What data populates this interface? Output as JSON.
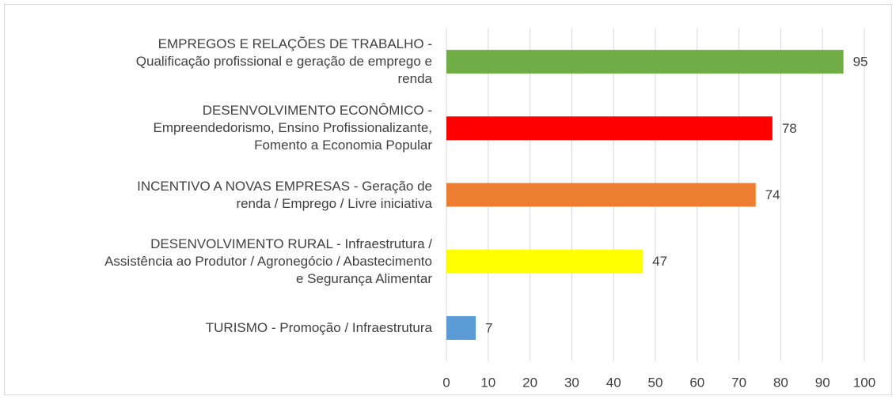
{
  "chart_data": {
    "type": "bar",
    "orientation": "horizontal",
    "categories": [
      "EMPREGOS E RELAÇÕES DE TRABALHO -\nQualificação profissional e geração de emprego e\nrenda",
      "DESENVOLVIMENTO ECONÔMICO -\nEmpreendedorismo, Ensino Profissionalizante,\nFomento a Economia Popular",
      "INCENTIVO A NOVAS EMPRESAS - Geração de\nrenda / Emprego / Livre iniciativa",
      "DESENVOLVIMENTO RURAL - Infraestrutura /\nAssistência ao Produtor / Agronegócio / Abastecimento\ne Segurança Alimentar",
      "TURISMO - Promoção / Infraestrutura"
    ],
    "values": [
      95,
      78,
      74,
      47,
      7
    ],
    "colors": [
      "#70ad47",
      "#ff0000",
      "#ed7d31",
      "#ffff00",
      "#5b9bd5"
    ],
    "xlim": [
      0,
      100
    ],
    "xticks": [
      0,
      10,
      20,
      30,
      40,
      50,
      60,
      70,
      80,
      90,
      100
    ],
    "grid": true
  }
}
